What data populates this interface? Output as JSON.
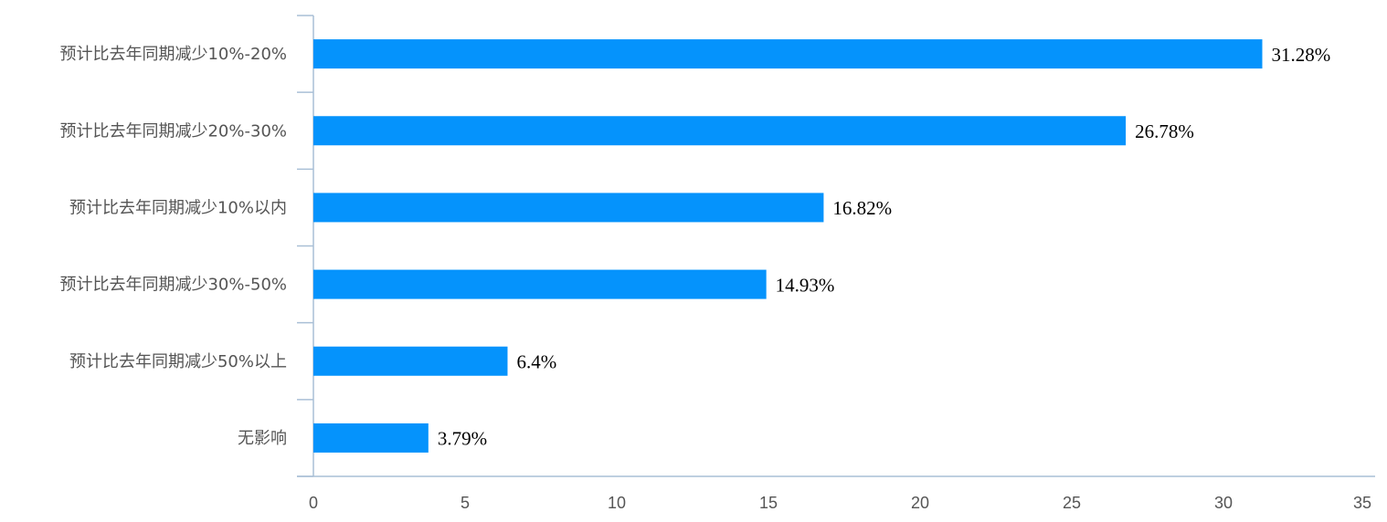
{
  "chart_data": {
    "type": "bar",
    "orientation": "horizontal",
    "categories": [
      "预计比去年同期减少10%-20%",
      "预计比去年同期减少20%-30%",
      "预计比去年同期减少10%以内",
      "预计比去年同期减少30%-50%",
      "预计比去年同期减少50%以上",
      "无影响"
    ],
    "values": [
      31.28,
      26.78,
      16.82,
      14.93,
      6.4,
      3.79
    ],
    "value_labels": [
      "31.28%",
      "26.78%",
      "16.82%",
      "14.93%",
      "6.4%",
      "3.79%"
    ],
    "color": "#0593fc",
    "xlim": [
      0,
      35
    ],
    "xticks": [
      0,
      5,
      10,
      15,
      20,
      25,
      30,
      35
    ],
    "grid": false
  }
}
